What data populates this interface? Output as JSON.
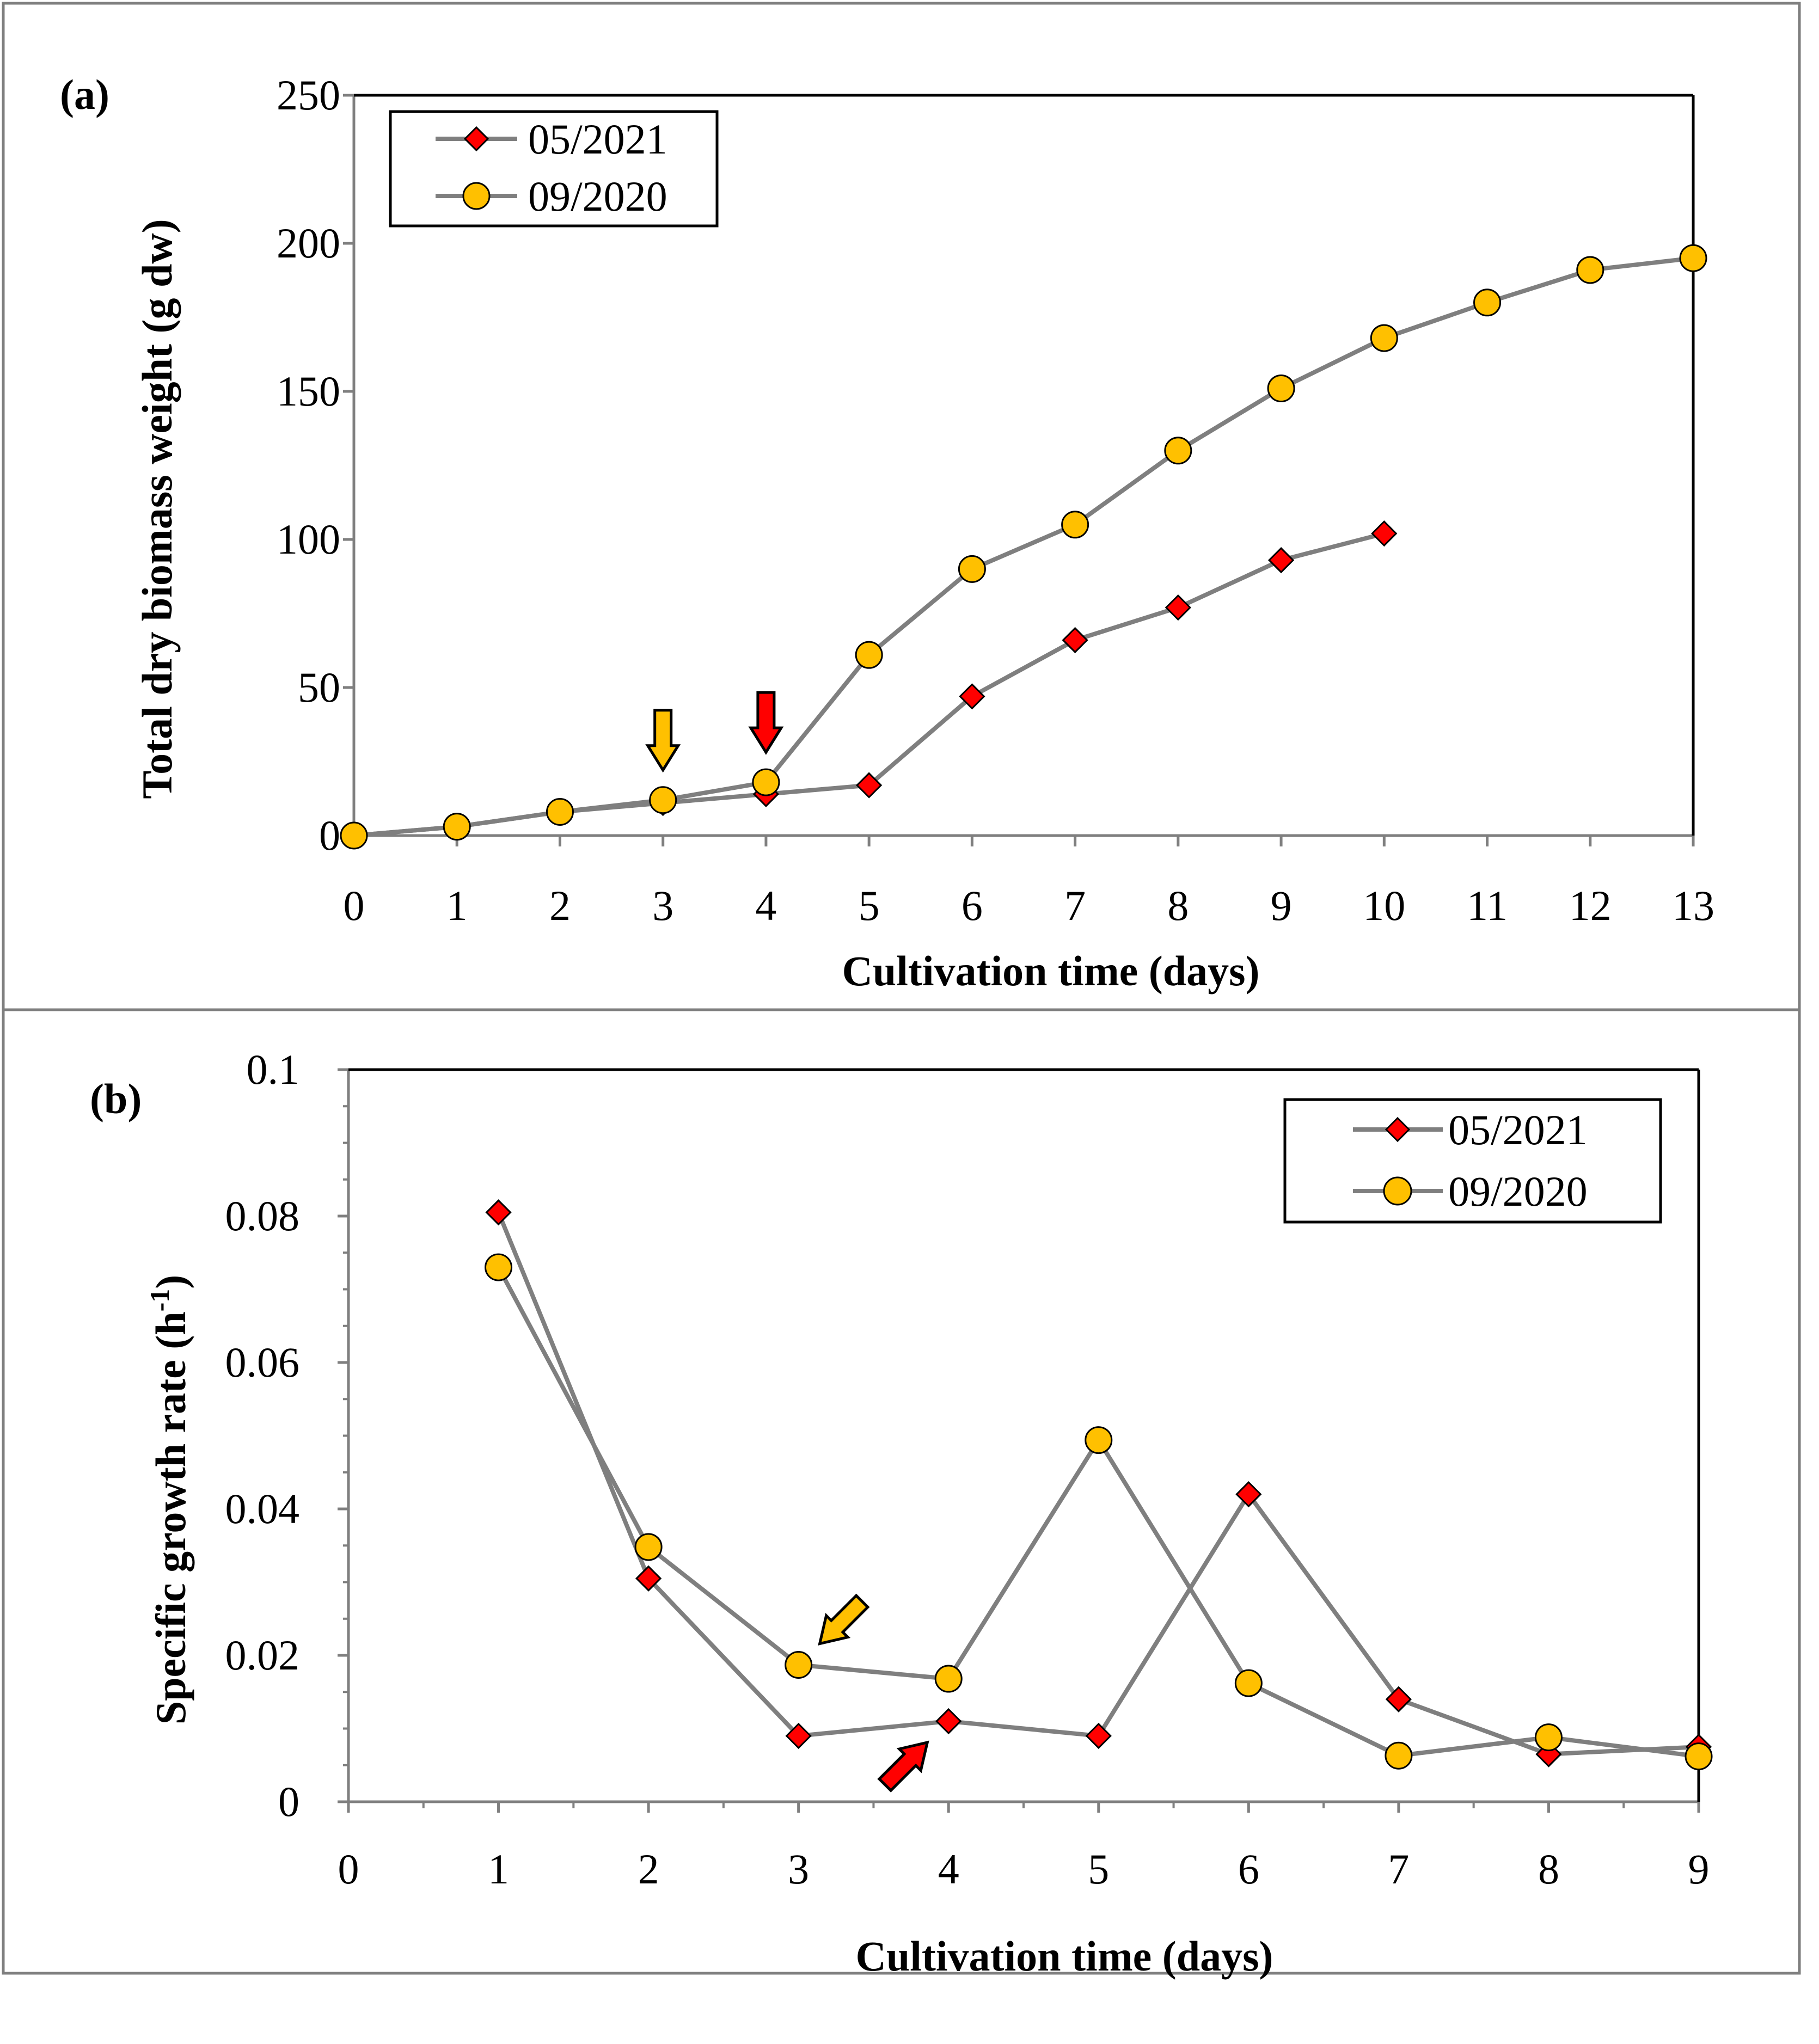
{
  "chart_data": [
    {
      "panel": "(a)",
      "type": "line",
      "xlabel": "Cultivation time (days)",
      "ylabel": "Total dry biomass weight (g dw)",
      "xlim": [
        0,
        13
      ],
      "ylim": [
        0,
        250
      ],
      "xticks": [
        0,
        1,
        2,
        3,
        4,
        5,
        6,
        7,
        8,
        9,
        10,
        11,
        12,
        13
      ],
      "yticks": [
        0,
        50,
        100,
        150,
        200,
        250
      ],
      "legend": "top-left",
      "series": [
        {
          "name": "05/2021",
          "marker": "diamond",
          "color": "#ff0000",
          "x": [
            0,
            1,
            2,
            3,
            4,
            5,
            6,
            7,
            8,
            9,
            10
          ],
          "y": [
            0,
            3,
            8,
            11,
            14,
            17,
            47,
            66,
            77,
            93,
            102
          ]
        },
        {
          "name": "09/2020",
          "marker": "circle",
          "color": "#ffc000",
          "x": [
            0,
            1,
            2,
            3,
            4,
            5,
            6,
            7,
            8,
            9,
            10,
            11,
            12,
            13
          ],
          "y": [
            0,
            3,
            8,
            12,
            18,
            61,
            90,
            105,
            130,
            151,
            168,
            180,
            191,
            195
          ]
        }
      ],
      "annotations": [
        {
          "type": "arrow",
          "color": "#ffc000",
          "x": 3,
          "y": 12,
          "direction": "down"
        },
        {
          "type": "arrow",
          "color": "#ff0000",
          "x": 4,
          "y": 18,
          "direction": "down"
        }
      ]
    },
    {
      "panel": "(b)",
      "type": "line",
      "xlabel": "Cultivation time (days)",
      "ylabel": "Specific growth rate (h",
      "ylabel_superscript": "-1",
      "ylabel_suffix": ")",
      "xlim": [
        0,
        9
      ],
      "ylim": [
        0,
        0.1
      ],
      "xticks": [
        0,
        1,
        2,
        3,
        4,
        5,
        6,
        7,
        8,
        9
      ],
      "yticks": [
        "0",
        "0.02",
        "0.04",
        "0.06",
        "0.08",
        "0.1"
      ],
      "legend": "top-right",
      "series": [
        {
          "name": "05/2021",
          "marker": "diamond",
          "color": "#ff0000",
          "x": [
            1,
            2,
            3,
            4,
            5,
            6,
            7,
            8,
            9
          ],
          "y": [
            0.0805,
            0.0305,
            0.009,
            0.011,
            0.009,
            0.042,
            0.014,
            0.0065,
            0.0075
          ]
        },
        {
          "name": "09/2020",
          "marker": "circle",
          "color": "#ffc000",
          "x": [
            1,
            2,
            3,
            4,
            5,
            6,
            7,
            8,
            9
          ],
          "y": [
            0.073,
            0.0348,
            0.0187,
            0.0168,
            0.0494,
            0.0162,
            0.0063,
            0.0088,
            0.0062
          ]
        }
      ],
      "annotations": [
        {
          "type": "arrow",
          "color": "#ffc000",
          "x": 3,
          "y": 0.0187,
          "direction": "down-left"
        },
        {
          "type": "arrow",
          "color": "#ff0000",
          "x": 4,
          "y": 0.011,
          "direction": "up-right"
        }
      ]
    }
  ]
}
